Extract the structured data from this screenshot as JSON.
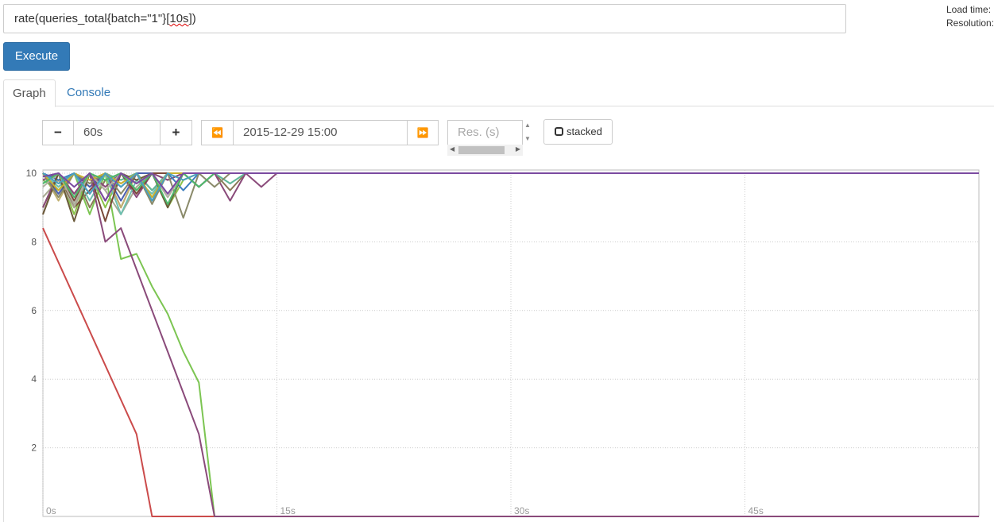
{
  "query": {
    "expression_prefix": "rate(queries_total{batch=\"1\"}[",
    "expression_squiggle": "10s",
    "expression_suffix": "])"
  },
  "stats": {
    "load_time_label": "Load time:",
    "resolution_label": "Resolution:"
  },
  "execute_label": "Execute",
  "tabs": [
    {
      "label": "Graph"
    },
    {
      "label": "Console"
    }
  ],
  "controls": {
    "range_minus": "−",
    "range_value": "60s",
    "range_plus": "+",
    "back_icon": "⏪",
    "end_time": "2015-12-29 15:00",
    "forward_icon": "⏩",
    "resolution_placeholder": "Res. (s)",
    "stacked_label": "stacked"
  },
  "chart_data": {
    "type": "line",
    "xlim": [
      0,
      60
    ],
    "ylim": [
      0,
      10
    ],
    "x_ticks": [
      0,
      15,
      30,
      45
    ],
    "x_tick_labels": [
      "0s",
      "15s",
      "30s",
      "45s"
    ],
    "y_ticks": [
      2,
      4,
      6,
      8,
      10
    ],
    "y_tick_labels": [
      "2",
      "4",
      "6",
      "8",
      "10"
    ],
    "grid": true,
    "colors": [
      "#cb4b4b",
      "#8bc34a",
      "#7a4a3a",
      "#8a7a5a",
      "#a8a890",
      "#c0b070",
      "#7cc552",
      "#5fb89a",
      "#4a5fb0",
      "#8a4a7a",
      "#6ec0b0",
      "#3d7ebf",
      "#7a4a3a",
      "#8a4a7a",
      "#6a5a3a",
      "#8a8a6a",
      "#b0b0a0",
      "#c8b030",
      "#4db86a",
      "#4aa0c0",
      "#7a4aa0"
    ],
    "series": [
      {
        "values": [
          [
            0,
            8.4
          ],
          [
            6,
            2.4
          ],
          [
            7,
            0
          ],
          [
            60,
            0
          ]
        ]
      },
      {
        "values": [
          [
            0,
            9
          ],
          [
            1,
            10
          ],
          [
            2,
            8.8
          ],
          [
            3,
            10
          ],
          [
            4,
            9
          ],
          [
            5,
            10
          ],
          [
            6,
            9.5
          ],
          [
            7,
            10
          ],
          [
            8,
            9
          ],
          [
            9,
            9.8
          ],
          [
            10,
            10
          ],
          [
            60,
            10
          ]
        ]
      },
      {
        "values": [
          [
            0,
            8.8
          ],
          [
            1,
            10
          ],
          [
            2,
            9
          ],
          [
            3,
            9.5
          ],
          [
            4,
            10
          ],
          [
            5,
            9
          ],
          [
            6,
            10
          ],
          [
            7,
            9.5
          ],
          [
            8,
            10
          ],
          [
            60,
            10
          ]
        ]
      },
      {
        "values": [
          [
            0,
            10
          ],
          [
            1,
            9.5
          ],
          [
            2,
            10
          ],
          [
            3,
            9
          ],
          [
            4,
            9.8
          ],
          [
            5,
            10
          ],
          [
            6,
            9.5
          ],
          [
            7,
            10
          ],
          [
            8,
            9.8
          ],
          [
            9,
            10
          ],
          [
            10,
            9.6
          ],
          [
            11,
            10
          ],
          [
            12,
            9.5
          ],
          [
            13,
            10
          ],
          [
            60,
            10
          ]
        ]
      },
      {
        "values": [
          [
            0,
            9.3
          ],
          [
            1,
            9.8
          ],
          [
            2,
            9
          ],
          [
            3,
            10
          ],
          [
            4,
            9.5
          ],
          [
            5,
            8.8
          ],
          [
            6,
            9.6
          ],
          [
            7,
            10
          ],
          [
            8,
            9.3
          ],
          [
            9,
            10
          ],
          [
            60,
            10
          ]
        ]
      },
      {
        "values": [
          [
            0,
            10
          ],
          [
            1,
            9.2
          ],
          [
            2,
            10
          ],
          [
            3,
            9.6
          ],
          [
            4,
            10
          ],
          [
            5,
            9
          ],
          [
            6,
            10
          ],
          [
            60,
            10
          ]
        ]
      },
      {
        "values": [
          [
            0,
            9.8
          ],
          [
            1,
            9.5
          ],
          [
            2,
            10
          ],
          [
            3,
            8.8
          ],
          [
            4,
            10
          ],
          [
            5,
            7.5
          ],
          [
            6,
            7.65
          ],
          [
            7,
            6.7
          ],
          [
            8,
            5.9
          ],
          [
            9,
            4.8
          ],
          [
            10,
            3.9
          ],
          [
            11,
            0
          ],
          [
            60,
            0
          ]
        ]
      },
      {
        "values": [
          [
            0,
            10
          ],
          [
            1,
            9.6
          ],
          [
            2,
            10
          ],
          [
            3,
            9.4
          ],
          [
            4,
            10
          ],
          [
            5,
            9.8
          ],
          [
            6,
            10
          ],
          [
            7,
            9.5
          ],
          [
            8,
            10
          ],
          [
            9,
            10
          ],
          [
            10,
            9.6
          ],
          [
            11,
            10
          ],
          [
            12,
            9.7
          ],
          [
            13,
            10
          ],
          [
            60,
            10
          ]
        ]
      },
      {
        "values": [
          [
            0,
            10
          ],
          [
            1,
            9.4
          ],
          [
            2,
            10
          ],
          [
            3,
            9.6
          ],
          [
            4,
            10
          ],
          [
            5,
            9.2
          ],
          [
            6,
            10
          ],
          [
            60,
            10
          ]
        ]
      },
      {
        "values": [
          [
            0,
            9.8
          ],
          [
            1,
            10
          ],
          [
            2,
            9.4
          ],
          [
            3,
            10
          ],
          [
            4,
            9.6
          ],
          [
            5,
            10
          ],
          [
            6,
            9.3
          ],
          [
            7,
            10
          ],
          [
            8,
            9.8
          ],
          [
            9,
            10
          ],
          [
            10,
            9.6
          ],
          [
            11,
            10
          ],
          [
            12,
            9.2
          ],
          [
            13,
            10
          ],
          [
            14,
            9.6
          ],
          [
            15,
            10
          ],
          [
            60,
            10
          ]
        ]
      },
      {
        "values": [
          [
            0,
            10
          ],
          [
            1,
            9.6
          ],
          [
            2,
            10
          ],
          [
            3,
            9.2
          ],
          [
            4,
            10
          ],
          [
            5,
            8.8
          ],
          [
            6,
            9.8
          ],
          [
            7,
            9.4
          ],
          [
            8,
            10
          ],
          [
            60,
            10
          ]
        ]
      },
      {
        "values": [
          [
            0,
            10
          ],
          [
            1,
            9.8
          ],
          [
            2,
            10
          ],
          [
            3,
            9.4
          ],
          [
            4,
            10
          ],
          [
            5,
            9.6
          ],
          [
            6,
            10
          ],
          [
            7,
            9.2
          ],
          [
            8,
            10
          ],
          [
            9,
            9.5
          ],
          [
            10,
            10
          ],
          [
            60,
            10
          ]
        ]
      },
      {
        "values": [
          [
            0,
            9
          ],
          [
            1,
            10
          ],
          [
            2,
            9.2
          ],
          [
            3,
            10
          ],
          [
            4,
            8.6
          ],
          [
            5,
            10
          ],
          [
            6,
            9.4
          ],
          [
            7,
            10
          ],
          [
            60,
            10
          ]
        ]
      },
      {
        "values": [
          [
            0,
            9
          ],
          [
            1,
            10
          ],
          [
            2,
            9.4
          ],
          [
            3,
            10
          ],
          [
            4,
            8
          ],
          [
            5,
            8.4
          ],
          [
            6,
            7.2
          ],
          [
            7,
            6
          ],
          [
            8,
            4.8
          ],
          [
            9,
            3.6
          ],
          [
            10,
            2.4
          ],
          [
            11,
            0
          ],
          [
            60,
            0
          ]
        ]
      },
      {
        "values": [
          [
            0,
            8.8
          ],
          [
            1,
            10
          ],
          [
            2,
            8.6
          ],
          [
            3,
            10
          ],
          [
            4,
            9.2
          ],
          [
            5,
            10
          ],
          [
            6,
            9.8
          ],
          [
            7,
            10
          ],
          [
            8,
            9
          ],
          [
            9,
            10
          ],
          [
            60,
            10
          ]
        ]
      },
      {
        "values": [
          [
            0,
            10
          ],
          [
            1,
            9.3
          ],
          [
            2,
            10
          ],
          [
            3,
            9.7
          ],
          [
            4,
            10
          ],
          [
            5,
            9.4
          ],
          [
            6,
            10
          ],
          [
            7,
            9.1
          ],
          [
            8,
            10
          ],
          [
            9,
            8.7
          ],
          [
            10,
            10
          ],
          [
            11,
            9.6
          ],
          [
            12,
            10
          ],
          [
            60,
            10
          ]
        ]
      },
      {
        "values": [
          [
            0,
            9.6
          ],
          [
            1,
            10
          ],
          [
            2,
            9.1
          ],
          [
            3,
            10
          ],
          [
            4,
            9.5
          ],
          [
            5,
            10
          ],
          [
            6,
            9.7
          ],
          [
            7,
            10
          ],
          [
            8,
            9.3
          ],
          [
            9,
            10
          ],
          [
            60,
            10
          ]
        ]
      },
      {
        "values": [
          [
            0,
            10
          ],
          [
            1,
            9.5
          ],
          [
            2,
            10
          ],
          [
            3,
            9.8
          ],
          [
            4,
            10
          ],
          [
            5,
            9.7
          ],
          [
            6,
            10
          ],
          [
            7,
            9.3
          ],
          [
            8,
            10
          ],
          [
            60,
            10
          ]
        ]
      },
      {
        "values": [
          [
            0,
            9.7
          ],
          [
            1,
            10
          ],
          [
            2,
            9.3
          ],
          [
            3,
            10
          ],
          [
            4,
            9.8
          ],
          [
            5,
            10
          ],
          [
            6,
            9.5
          ],
          [
            7,
            10
          ],
          [
            8,
            9.1
          ],
          [
            9,
            10
          ],
          [
            10,
            9.6
          ],
          [
            11,
            10
          ],
          [
            60,
            10
          ]
        ]
      },
      {
        "values": [
          [
            0,
            10
          ],
          [
            1,
            9.7
          ],
          [
            2,
            10
          ],
          [
            3,
            9.4
          ],
          [
            4,
            10
          ],
          [
            5,
            9.6
          ],
          [
            6,
            10
          ],
          [
            7,
            9.2
          ],
          [
            8,
            10
          ],
          [
            9,
            9.8
          ],
          [
            10,
            10
          ],
          [
            60,
            10
          ]
        ]
      },
      {
        "values": [
          [
            0,
            9.9
          ],
          [
            1,
            10
          ],
          [
            2,
            9.6
          ],
          [
            3,
            10
          ],
          [
            4,
            9.2
          ],
          [
            5,
            10
          ],
          [
            6,
            9.7
          ],
          [
            7,
            10
          ],
          [
            8,
            9.4
          ],
          [
            9,
            10
          ],
          [
            60,
            10
          ]
        ]
      }
    ]
  }
}
